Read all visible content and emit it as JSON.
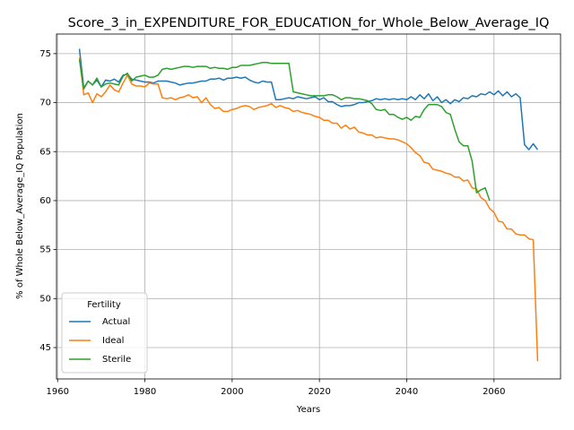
{
  "chart_data": {
    "type": "line",
    "title": "Score_3_in_EXPENDITURE_FOR_EDUCATION_for_Whole_Below_Average_IQ",
    "xlabel": "Years",
    "ylabel": "% of Whole Below_Average_IQ Population",
    "legend_title": "Fertility",
    "legend": "lower left",
    "grid": true,
    "xlim": [
      1959.75,
      2075.25
    ],
    "ylim": [
      41.8,
      77.0
    ],
    "xticks": [
      1960,
      1980,
      2000,
      2020,
      2040,
      2060
    ],
    "yticks": [
      45,
      50,
      55,
      60,
      65,
      70,
      75
    ],
    "x": [
      1965,
      1966,
      1967,
      1968,
      1969,
      1970,
      1971,
      1972,
      1973,
      1974,
      1975,
      1976,
      1977,
      1978,
      1979,
      1980,
      1981,
      1982,
      1983,
      1984,
      1985,
      1986,
      1987,
      1988,
      1989,
      1990,
      1991,
      1992,
      1993,
      1994,
      1995,
      1996,
      1997,
      1998,
      1999,
      2000,
      2001,
      2002,
      2003,
      2004,
      2005,
      2006,
      2007,
      2008,
      2009,
      2010,
      2011,
      2012,
      2013,
      2014,
      2015,
      2016,
      2017,
      2018,
      2019,
      2020,
      2021,
      2022,
      2023,
      2024,
      2025,
      2026,
      2027,
      2028,
      2029,
      2030,
      2031,
      2032,
      2033,
      2034,
      2035,
      2036,
      2037,
      2038,
      2039,
      2040,
      2041,
      2042,
      2043,
      2044,
      2045,
      2046,
      2047,
      2048,
      2049,
      2050,
      2051,
      2052,
      2053,
      2054,
      2055,
      2056,
      2057,
      2058,
      2059,
      2060,
      2061,
      2062,
      2063,
      2064,
      2065,
      2066,
      2067,
      2068,
      2069,
      2070
    ],
    "series": [
      {
        "name": "Actual",
        "color": "#1f77b4",
        "values": [
          75.5,
          71.5,
          72.2,
          71.8,
          72.3,
          71.6,
          72.3,
          72.2,
          72.4,
          72.1,
          72.8,
          72.9,
          72.4,
          72.3,
          72.2,
          72.1,
          72.1,
          72.0,
          72.2,
          72.2,
          72.2,
          72.1,
          72.0,
          71.8,
          71.9,
          72.0,
          72.0,
          72.1,
          72.2,
          72.2,
          72.4,
          72.4,
          72.5,
          72.3,
          72.5,
          72.5,
          72.6,
          72.5,
          72.6,
          72.3,
          72.1,
          72.0,
          72.2,
          72.1,
          72.1,
          70.3,
          70.3,
          70.4,
          70.5,
          70.4,
          70.6,
          70.5,
          70.4,
          70.5,
          70.6,
          70.3,
          70.5,
          70.1,
          70.1,
          69.8,
          69.6,
          69.7,
          69.7,
          69.8,
          70.0,
          70.0,
          70.1,
          70.2,
          70.4,
          70.3,
          70.4,
          70.3,
          70.4,
          70.3,
          70.4,
          70.3,
          70.6,
          70.3,
          70.8,
          70.4,
          70.9,
          70.2,
          70.6,
          70.0,
          70.3,
          69.9,
          70.3,
          70.1,
          70.5,
          70.4,
          70.7,
          70.6,
          70.9,
          70.8,
          71.1,
          70.8,
          71.2,
          70.7,
          71.1,
          70.6,
          70.9,
          70.5,
          65.7,
          65.2,
          65.8,
          65.2
        ]
      },
      {
        "name": "Ideal",
        "color": "#ff7f0e",
        "values": [
          74.6,
          70.8,
          71.0,
          70.0,
          70.9,
          70.6,
          71.1,
          71.8,
          71.3,
          71.1,
          72.0,
          72.8,
          71.9,
          71.7,
          71.7,
          71.6,
          72.0,
          71.9,
          71.9,
          70.5,
          70.4,
          70.5,
          70.3,
          70.5,
          70.6,
          70.8,
          70.5,
          70.6,
          70.0,
          70.5,
          69.8,
          69.4,
          69.5,
          69.1,
          69.1,
          69.3,
          69.4,
          69.6,
          69.7,
          69.6,
          69.3,
          69.5,
          69.6,
          69.7,
          69.9,
          69.5,
          69.7,
          69.5,
          69.4,
          69.1,
          69.2,
          69.0,
          68.9,
          68.8,
          68.6,
          68.5,
          68.2,
          68.2,
          67.9,
          67.9,
          67.4,
          67.7,
          67.3,
          67.5,
          67.0,
          66.9,
          66.7,
          66.7,
          66.4,
          66.5,
          66.4,
          66.3,
          66.3,
          66.2,
          66.0,
          65.8,
          65.4,
          64.9,
          64.6,
          63.9,
          63.8,
          63.2,
          63.1,
          63.0,
          62.8,
          62.7,
          62.4,
          62.4,
          62.0,
          62.1,
          61.3,
          61.2,
          60.3,
          60.0,
          59.2,
          58.8,
          57.9,
          57.8,
          57.1,
          57.1,
          56.6,
          56.5,
          56.5,
          56.1,
          56.0,
          43.6
        ]
      },
      {
        "name": "Sterile",
        "color": "#2ca02c",
        "values": [
          74.4,
          71.4,
          72.2,
          71.8,
          72.5,
          71.6,
          71.9,
          72.0,
          71.9,
          71.8,
          72.7,
          73.0,
          72.2,
          72.6,
          72.7,
          72.8,
          72.6,
          72.6,
          72.8,
          73.4,
          73.5,
          73.4,
          73.5,
          73.6,
          73.7,
          73.7,
          73.6,
          73.7,
          73.7,
          73.7,
          73.5,
          73.6,
          73.5,
          73.5,
          73.4,
          73.6,
          73.6,
          73.8,
          73.8,
          73.8,
          73.9,
          74.0,
          74.1,
          74.1,
          74.0,
          74.0,
          74.0,
          74.0,
          74.0,
          71.1,
          71.0,
          70.9,
          70.8,
          70.7,
          70.7,
          70.7,
          70.7,
          70.8,
          70.8,
          70.6,
          70.3,
          70.5,
          70.5,
          70.4,
          70.4,
          70.3,
          70.2,
          69.9,
          69.3,
          69.2,
          69.3,
          68.8,
          68.8,
          68.5,
          68.3,
          68.5,
          68.2,
          68.6,
          68.5,
          69.3,
          69.8,
          69.8,
          69.8,
          69.6,
          69.0,
          68.8,
          67.3,
          66.0,
          65.6,
          65.6,
          64.0,
          60.8,
          61.1,
          61.3,
          60.0,
          null,
          null,
          null,
          null,
          null,
          null,
          null,
          null,
          null,
          null,
          null
        ]
      }
    ]
  }
}
